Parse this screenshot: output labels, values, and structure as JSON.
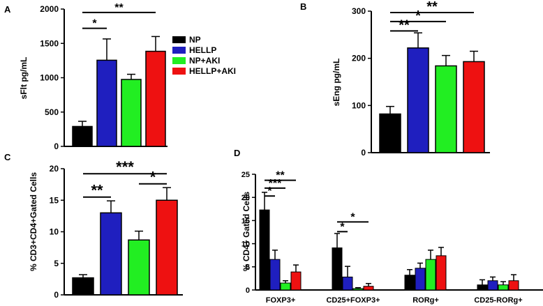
{
  "colors": {
    "NP": "#000000",
    "HELLP": "#1f1fbf",
    "NP+AKI": "#22ee22",
    "HELLP+AKI": "#ee1111"
  },
  "chart_data": [
    {
      "panel": "A",
      "type": "bar",
      "ylabel": "sFlt pg/mL",
      "ylim": [
        0,
        2000
      ],
      "yticks": [
        0,
        500,
        1000,
        1500,
        2000
      ],
      "categories": [
        "NP",
        "HELLP",
        "NP+AKI",
        "HELLP+AKI"
      ],
      "values": [
        290,
        1255,
        975,
        1385
      ],
      "errors": [
        75,
        310,
        75,
        215
      ],
      "legend": [
        "NP",
        "HELLP",
        "NP+AKI",
        "HELLP+AKI"
      ],
      "significance": [
        {
          "from": 0,
          "to": 1,
          "label": "*",
          "y": 1720
        },
        {
          "from": 0,
          "to": 3,
          "label": "**",
          "y": 1950
        }
      ]
    },
    {
      "panel": "B",
      "type": "bar",
      "ylabel": "sEng pg/mL",
      "ylim": [
        0,
        300
      ],
      "yticks": [
        0,
        100,
        200,
        300
      ],
      "categories": [
        "NP",
        "HELLP",
        "NP+AKI",
        "HELLP+AKI"
      ],
      "values": [
        82,
        222,
        184,
        193
      ],
      "errors": [
        16,
        32,
        22,
        22
      ],
      "significance": [
        {
          "from": 0,
          "to": 1,
          "label": "**",
          "y": 258
        },
        {
          "from": 0,
          "to": 2,
          "label": "*",
          "y": 278
        },
        {
          "from": 0,
          "to": 3,
          "label": "**",
          "y": 297
        }
      ]
    },
    {
      "panel": "C",
      "type": "bar",
      "ylabel": "% CD3+CD4+Gated Cells",
      "ylim": [
        0,
        20
      ],
      "yticks": [
        0,
        5,
        10,
        15,
        20
      ],
      "categories": [
        "NP",
        "HELLP",
        "NP+AKI",
        "HELLP+AKI"
      ],
      "values": [
        2.7,
        13.0,
        8.7,
        15.0
      ],
      "errors": [
        0.5,
        1.9,
        1.4,
        2.0
      ],
      "significance": [
        {
          "from": 0,
          "to": 1,
          "label": "**",
          "y": 15.5
        },
        {
          "from": 2,
          "to": 3,
          "label": "*",
          "y": 17.6
        },
        {
          "from": 0,
          "to": 3,
          "label": "***",
          "y": 19.2
        }
      ]
    },
    {
      "panel": "D",
      "type": "bar",
      "ylabel": "% CD4+ Gated Cells",
      "ylim": [
        0,
        25
      ],
      "yticks": [
        0,
        5,
        10,
        15,
        20,
        25
      ],
      "categories": [
        "FOXP3+",
        "CD25+FOXP3+",
        "RORg+",
        "CD25-RORg+"
      ],
      "series": [
        {
          "name": "NP",
          "values": [
            17.3,
            9.1,
            3.2,
            1.1
          ],
          "errors": [
            3.8,
            3.1,
            1.2,
            1.1
          ]
        },
        {
          "name": "HELLP",
          "values": [
            6.6,
            2.8,
            4.7,
            2.0
          ],
          "errors": [
            2.0,
            2.3,
            1.1,
            0.8
          ]
        },
        {
          "name": "NP+AKI",
          "values": [
            1.5,
            0.3,
            6.6,
            1.1
          ],
          "errors": [
            0.5,
            0.2,
            2.0,
            0.7
          ]
        },
        {
          "name": "HELLP+AKI",
          "values": [
            3.9,
            0.8,
            7.4,
            2.0
          ],
          "errors": [
            1.5,
            0.6,
            1.8,
            1.3
          ]
        }
      ],
      "significance": [
        {
          "group": 0,
          "from": 0,
          "to": 1,
          "label": "*",
          "y": 20.3
        },
        {
          "group": 0,
          "from": 0,
          "to": 2,
          "label": "***",
          "y": 22.0
        },
        {
          "group": 0,
          "from": 0,
          "to": 3,
          "label": "**",
          "y": 23.7
        },
        {
          "group": 1,
          "from": 0,
          "to": 1,
          "label": "*",
          "y": 12.6
        },
        {
          "group": 1,
          "from": 0,
          "to": 3,
          "label": "*",
          "y": 14.7
        }
      ]
    }
  ]
}
